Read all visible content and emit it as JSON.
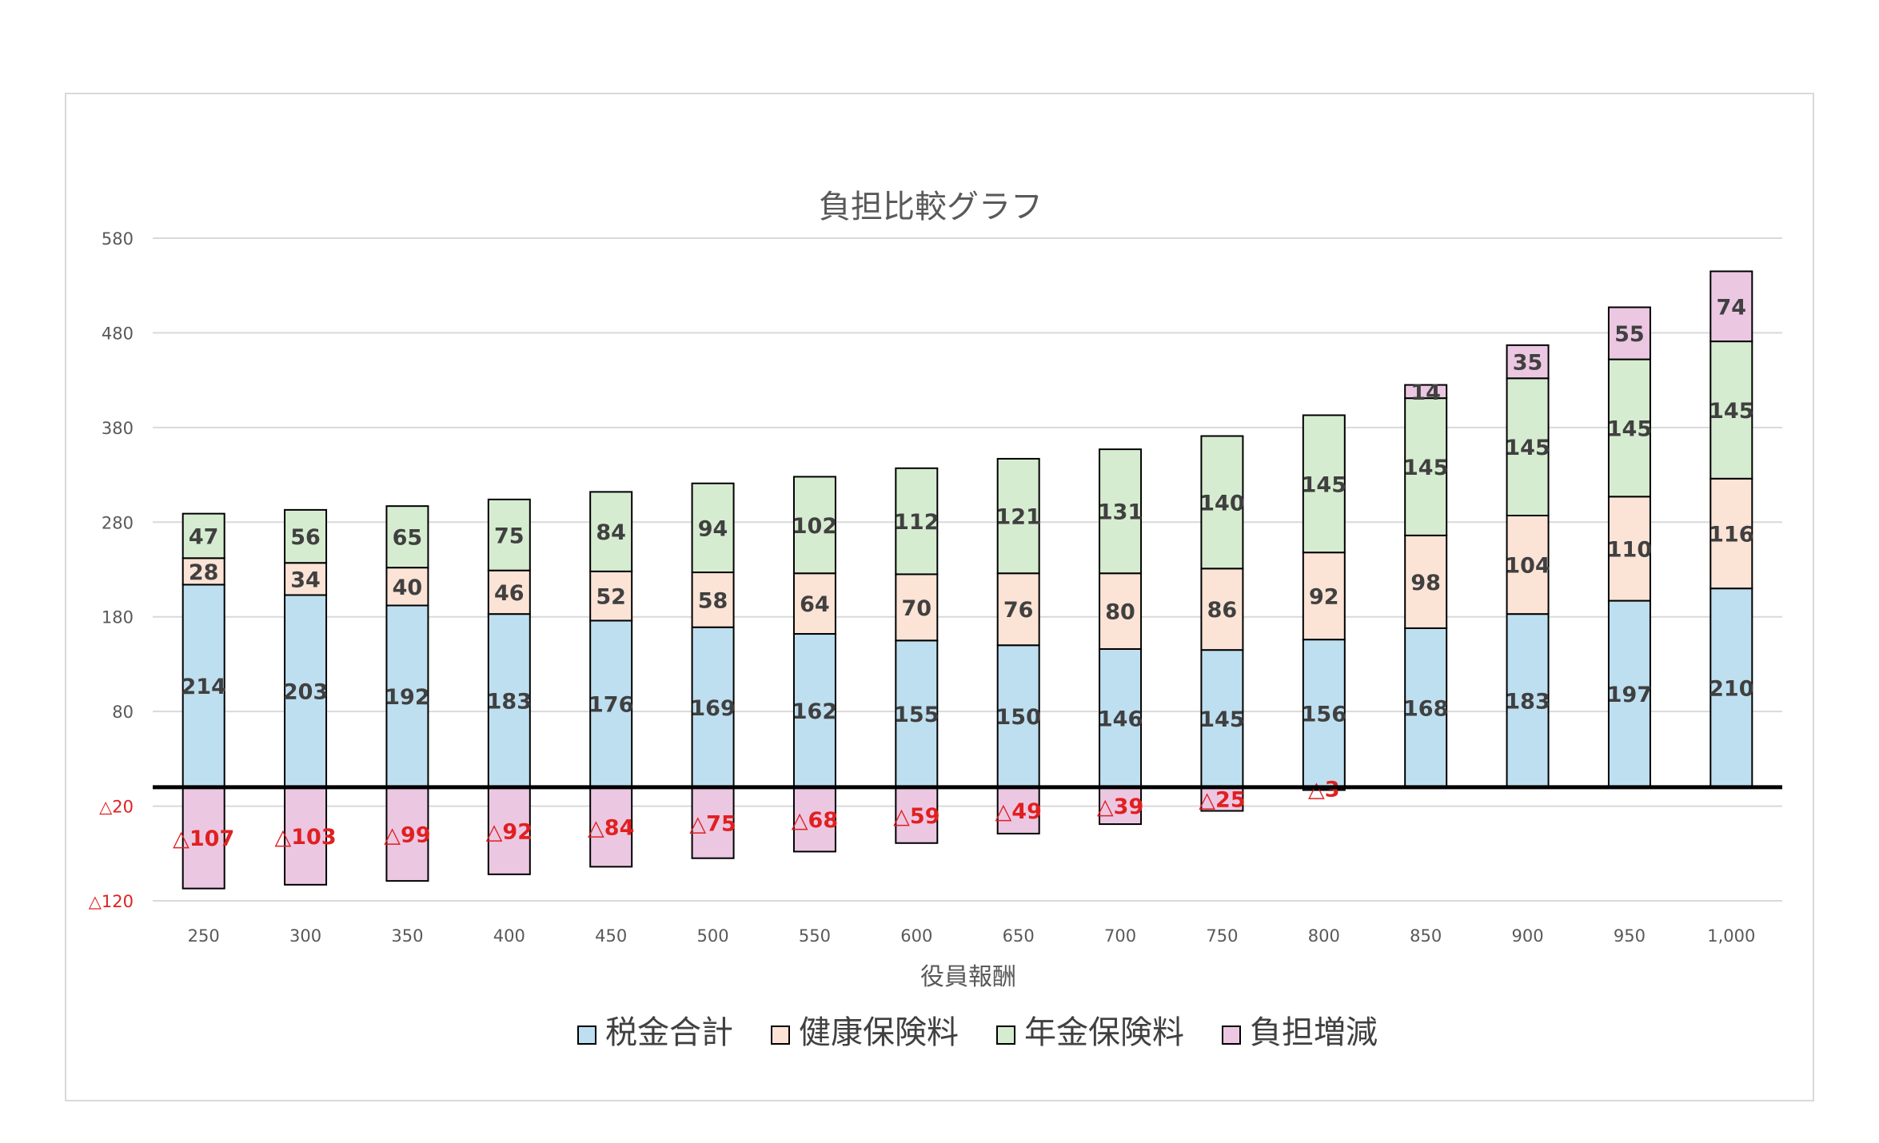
{
  "chart_data": {
    "type": "bar",
    "stacked": true,
    "title": "負担比較グラフ",
    "xlabel": "役員報酬",
    "ylabel": "",
    "ylim": [
      -120,
      580
    ],
    "yticks": [
      580,
      480,
      380,
      280,
      180,
      80,
      -20,
      -120
    ],
    "ytick_labels": [
      "580",
      "480",
      "380",
      "280",
      "180",
      "80",
      "△20",
      "△120"
    ],
    "categories": [
      "250",
      "300",
      "350",
      "400",
      "450",
      "500",
      "550",
      "600",
      "650",
      "700",
      "750",
      "800",
      "850",
      "900",
      "950",
      "1,000"
    ],
    "series": [
      {
        "name": "税金合計",
        "color": "#bedff0",
        "values": [
          214,
          203,
          192,
          183,
          176,
          169,
          162,
          155,
          150,
          146,
          145,
          156,
          168,
          183,
          197,
          210
        ],
        "labels": [
          "214",
          "203",
          "192",
          "183",
          "176",
          "169",
          "162",
          "155",
          "150",
          "146",
          "145",
          "156",
          "168",
          "183",
          "197",
          "210"
        ]
      },
      {
        "name": "健康保険料",
        "color": "#fbe3d6",
        "values": [
          28,
          34,
          40,
          46,
          52,
          58,
          64,
          70,
          76,
          80,
          86,
          92,
          98,
          104,
          110,
          116
        ],
        "labels": [
          "28",
          "34",
          "40",
          "46",
          "52",
          "58",
          "64",
          "70",
          "76",
          "80",
          "86",
          "92",
          "98",
          "104",
          "110",
          "116"
        ]
      },
      {
        "name": "年金保険料",
        "color": "#d6ecd0",
        "values": [
          47,
          56,
          65,
          75,
          84,
          94,
          102,
          112,
          121,
          131,
          140,
          145,
          145,
          145,
          145,
          145
        ],
        "labels": [
          "47",
          "56",
          "65",
          "75",
          "84",
          "94",
          "102",
          "112",
          "121",
          "131",
          "140",
          "145",
          "145",
          "145",
          "145",
          "145"
        ]
      },
      {
        "name": "負担増減",
        "color": "#ecc7e2",
        "values": [
          -107,
          -103,
          -99,
          -92,
          -84,
          -75,
          -68,
          -59,
          -49,
          -39,
          -25,
          -3,
          14,
          35,
          55,
          74
        ],
        "labels": [
          "△107",
          "△103",
          "△99",
          "△92",
          "△84",
          "△75",
          "△68",
          "△59",
          "△49",
          "△39",
          "△25",
          "△3",
          "14",
          "35",
          "55",
          "74"
        ]
      }
    ],
    "legend_position": "bottom",
    "grid": true
  },
  "colors": {
    "negative_label": "#e02020",
    "gridline": "#d9d9d9",
    "baseline": "#000000"
  }
}
